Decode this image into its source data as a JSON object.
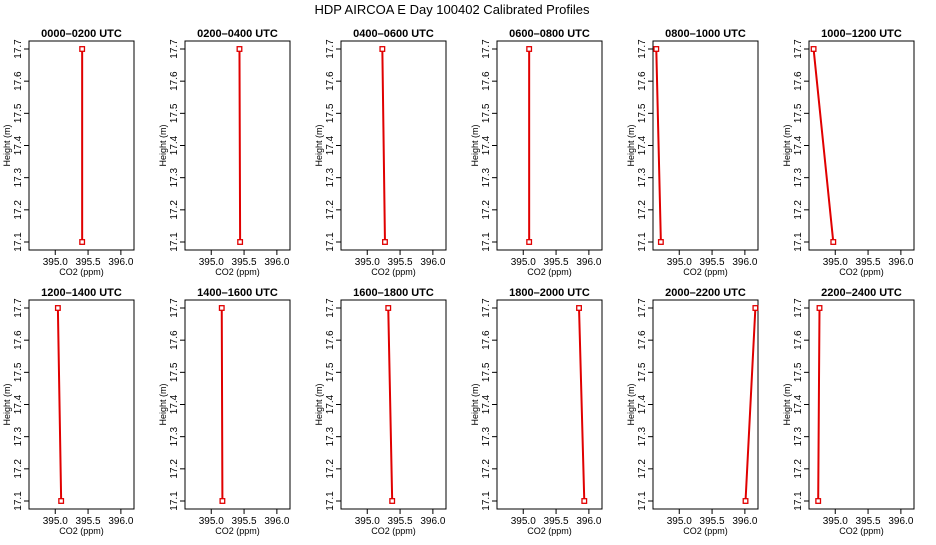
{
  "title": "HDP AIRCOA E  Day 100402  Calibrated Profiles",
  "colors": {
    "profile": "#e00000",
    "axes": "#000000",
    "background": "#ffffff"
  },
  "chart_data": [
    {
      "type": "line",
      "title": "0000–0200 UTC",
      "xlabel": "CO2 (ppm)",
      "ylabel": "Height (m)",
      "xlim": [
        394.6,
        396.2
      ],
      "ylim": [
        17.07,
        17.73
      ],
      "xticks": [
        "395.0",
        "395.5",
        "396.0"
      ],
      "yticks": [
        "17.1",
        "17.2",
        "17.3",
        "17.4",
        "17.5",
        "17.6",
        "17.7"
      ],
      "grid": false,
      "series": [
        {
          "x": [
            395.41,
            395.41
          ],
          "y": [
            17.1,
            17.7
          ]
        }
      ]
    },
    {
      "type": "line",
      "title": "0200–0400 UTC",
      "xlabel": "CO2 (ppm)",
      "ylabel": "Height (m)",
      "xlim": [
        394.6,
        396.2
      ],
      "ylim": [
        17.07,
        17.73
      ],
      "xticks": [
        "395.0",
        "395.5",
        "396.0"
      ],
      "yticks": [
        "17.1",
        "17.2",
        "17.3",
        "17.4",
        "17.5",
        "17.6",
        "17.7"
      ],
      "grid": false,
      "series": [
        {
          "x": [
            395.44,
            395.43
          ],
          "y": [
            17.1,
            17.7
          ]
        }
      ]
    },
    {
      "type": "line",
      "title": "0400–0600 UTC",
      "xlabel": "CO2 (ppm)",
      "ylabel": "Height (m)",
      "xlim": [
        394.6,
        396.2
      ],
      "ylim": [
        17.07,
        17.73
      ],
      "xticks": [
        "395.0",
        "395.5",
        "396.0"
      ],
      "yticks": [
        "17.1",
        "17.2",
        "17.3",
        "17.4",
        "17.5",
        "17.6",
        "17.7"
      ],
      "grid": false,
      "series": [
        {
          "x": [
            395.27,
            395.23
          ],
          "y": [
            17.1,
            17.7
          ]
        }
      ]
    },
    {
      "type": "line",
      "title": "0600–0800 UTC",
      "xlabel": "CO2 (ppm)",
      "ylabel": "Height (m)",
      "xlim": [
        394.6,
        396.2
      ],
      "ylim": [
        17.07,
        17.73
      ],
      "xticks": [
        "395.0",
        "395.5",
        "396.0"
      ],
      "yticks": [
        "17.1",
        "17.2",
        "17.3",
        "17.4",
        "17.5",
        "17.6",
        "17.7"
      ],
      "grid": false,
      "series": [
        {
          "x": [
            395.09,
            395.09
          ],
          "y": [
            17.1,
            17.7
          ]
        }
      ]
    },
    {
      "type": "line",
      "title": "0800–1000 UTC",
      "xlabel": "CO2 (ppm)",
      "ylabel": "Height (m)",
      "xlim": [
        394.6,
        396.2
      ],
      "ylim": [
        17.07,
        17.73
      ],
      "xticks": [
        "395.0",
        "395.5",
        "396.0"
      ],
      "yticks": [
        "17.1",
        "17.2",
        "17.3",
        "17.4",
        "17.5",
        "17.6",
        "17.7"
      ],
      "grid": false,
      "series": [
        {
          "x": [
            394.72,
            394.65
          ],
          "y": [
            17.1,
            17.7
          ]
        }
      ]
    },
    {
      "type": "line",
      "title": "1000–1200 UTC",
      "xlabel": "CO2 (ppm)",
      "ylabel": "Height (m)",
      "xlim": [
        394.6,
        396.2
      ],
      "ylim": [
        17.07,
        17.73
      ],
      "xticks": [
        "395.0",
        "395.5",
        "396.0"
      ],
      "yticks": [
        "17.1",
        "17.2",
        "17.3",
        "17.4",
        "17.5",
        "17.6",
        "17.7"
      ],
      "grid": false,
      "series": [
        {
          "x": [
            394.97,
            394.67
          ],
          "y": [
            17.1,
            17.7
          ]
        }
      ]
    },
    {
      "type": "line",
      "title": "1200–1400 UTC",
      "xlabel": "CO2 (ppm)",
      "ylabel": "Height (m)",
      "xlim": [
        394.6,
        396.2
      ],
      "ylim": [
        17.07,
        17.73
      ],
      "xticks": [
        "395.0",
        "395.5",
        "396.0"
      ],
      "yticks": [
        "17.1",
        "17.2",
        "17.3",
        "17.4",
        "17.5",
        "17.6",
        "17.7"
      ],
      "grid": false,
      "series": [
        {
          "x": [
            395.09,
            395.04
          ],
          "y": [
            17.1,
            17.7
          ]
        }
      ]
    },
    {
      "type": "line",
      "title": "1400–1600 UTC",
      "xlabel": "CO2 (ppm)",
      "ylabel": "Height (m)",
      "xlim": [
        394.6,
        396.2
      ],
      "ylim": [
        17.07,
        17.73
      ],
      "xticks": [
        "395.0",
        "395.5",
        "396.0"
      ],
      "yticks": [
        "17.1",
        "17.2",
        "17.3",
        "17.4",
        "17.5",
        "17.6",
        "17.7"
      ],
      "grid": false,
      "series": [
        {
          "x": [
            395.17,
            395.16
          ],
          "y": [
            17.1,
            17.7
          ]
        }
      ]
    },
    {
      "type": "line",
      "title": "1600–1800 UTC",
      "xlabel": "CO2 (ppm)",
      "ylabel": "Height (m)",
      "xlim": [
        394.6,
        396.2
      ],
      "ylim": [
        17.07,
        17.73
      ],
      "xticks": [
        "395.0",
        "395.5",
        "396.0"
      ],
      "yticks": [
        "17.1",
        "17.2",
        "17.3",
        "17.4",
        "17.5",
        "17.6",
        "17.7"
      ],
      "grid": false,
      "series": [
        {
          "x": [
            395.38,
            395.32
          ],
          "y": [
            17.1,
            17.7
          ]
        }
      ]
    },
    {
      "type": "line",
      "title": "1800–2000 UTC",
      "xlabel": "CO2 (ppm)",
      "ylabel": "Height (m)",
      "xlim": [
        394.6,
        396.2
      ],
      "ylim": [
        17.07,
        17.73
      ],
      "xticks": [
        "395.0",
        "395.5",
        "396.0"
      ],
      "yticks": [
        "17.1",
        "17.2",
        "17.3",
        "17.4",
        "17.5",
        "17.6",
        "17.7"
      ],
      "grid": false,
      "series": [
        {
          "x": [
            395.93,
            395.85
          ],
          "y": [
            17.1,
            17.7
          ]
        }
      ]
    },
    {
      "type": "line",
      "title": "2000–2200 UTC",
      "xlabel": "CO2 (ppm)",
      "ylabel": "Height (m)",
      "xlim": [
        394.6,
        396.2
      ],
      "ylim": [
        17.07,
        17.73
      ],
      "xticks": [
        "395.0",
        "395.5",
        "396.0"
      ],
      "yticks": [
        "17.1",
        "17.2",
        "17.3",
        "17.4",
        "17.5",
        "17.6",
        "17.7"
      ],
      "grid": false,
      "series": [
        {
          "x": [
            396.01,
            396.16
          ],
          "y": [
            17.1,
            17.7
          ]
        }
      ]
    },
    {
      "type": "line",
      "title": "2200–2400 UTC",
      "xlabel": "CO2 (ppm)",
      "ylabel": "Height (m)",
      "xlim": [
        394.6,
        396.2
      ],
      "ylim": [
        17.07,
        17.73
      ],
      "xticks": [
        "395.0",
        "395.5",
        "396.0"
      ],
      "yticks": [
        "17.1",
        "17.2",
        "17.3",
        "17.4",
        "17.5",
        "17.6",
        "17.7"
      ],
      "grid": false,
      "series": [
        {
          "x": [
            394.74,
            394.76
          ],
          "y": [
            17.1,
            17.7
          ]
        }
      ]
    }
  ]
}
